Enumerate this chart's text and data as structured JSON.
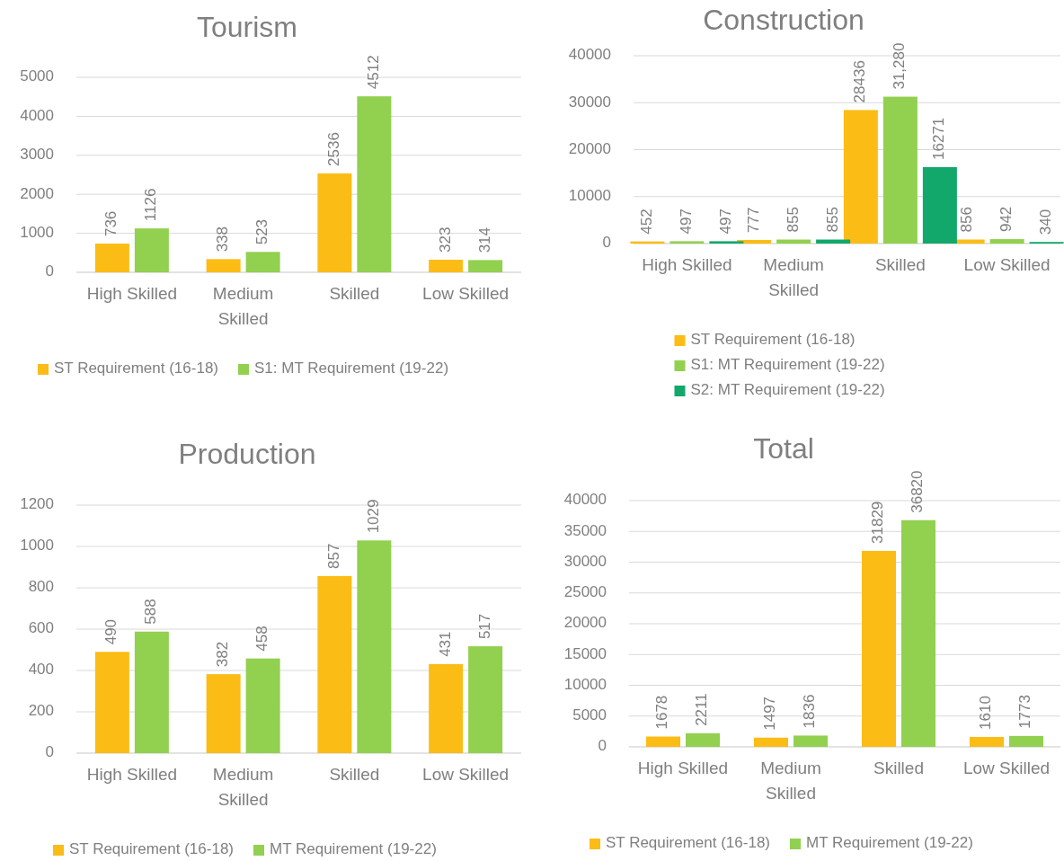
{
  "chart_data": [
    {
      "type": "bar",
      "title": "Tourism",
      "categories": [
        "High Skilled",
        "Medium Skilled",
        "Skilled",
        "Low Skilled"
      ],
      "series": [
        {
          "name": "ST Requirement (16-18)",
          "color": "#fbbc16",
          "values": [
            736,
            338,
            2536,
            323
          ]
        },
        {
          "name": "S1: MT Requirement (19-22)",
          "color": "#92d050",
          "values": [
            1126,
            523,
            4512,
            314
          ]
        }
      ],
      "ylim": [
        0,
        5000
      ],
      "yticks": [
        0,
        1000,
        2000,
        3000,
        4000,
        5000
      ],
      "grid": "y",
      "legend": "bottom",
      "data_labels": true
    },
    {
      "type": "bar",
      "title": "Construction",
      "categories": [
        "High Skilled",
        "Medium Skilled",
        "Skilled",
        "Low Skilled"
      ],
      "series": [
        {
          "name": "ST Requirement (16-18)",
          "color": "#fbbc16",
          "values": [
            452,
            777,
            28436,
            856
          ],
          "value_labels": [
            "452",
            "777",
            "28436",
            "856"
          ]
        },
        {
          "name": "S1: MT Requirement (19-22)",
          "color": "#92d050",
          "values": [
            497,
            855,
            31280,
            942
          ],
          "value_labels": [
            "497",
            "855",
            "31,280",
            "942"
          ]
        },
        {
          "name": "S2: MT Requirement (19-22)",
          "color": "#12a86b",
          "values": [
            497,
            855,
            16271,
            340
          ],
          "value_labels": [
            "497",
            "855",
            "16271",
            "340"
          ]
        }
      ],
      "ylim": [
        0,
        40000
      ],
      "yticks": [
        0,
        10000,
        20000,
        30000,
        40000
      ],
      "grid": "y",
      "legend": "bottom"
    },
    {
      "type": "bar",
      "title": "Production",
      "categories": [
        "High Skilled",
        "Medium Skilled",
        "Skilled",
        "Low Skilled"
      ],
      "series": [
        {
          "name": "ST Requirement (16-18)",
          "color": "#fbbc16",
          "values": [
            490,
            382,
            857,
            431
          ]
        },
        {
          "name": "MT Requirement (19-22)",
          "color": "#92d050",
          "values": [
            588,
            458,
            1029,
            517
          ]
        }
      ],
      "ylim": [
        0,
        1200
      ],
      "yticks": [
        0,
        200,
        400,
        600,
        800,
        1000,
        1200
      ],
      "grid": "y",
      "legend": "bottom",
      "data_labels": true
    },
    {
      "type": "bar",
      "title": "Total",
      "categories": [
        "High Skilled",
        "Medium Skilled",
        "Skilled",
        "Low Skilled"
      ],
      "series": [
        {
          "name": "ST Requirement (16-18)",
          "color": "#fbbc16",
          "values": [
            1678,
            1497,
            31829,
            1610
          ]
        },
        {
          "name": "MT Requirement (19-22)",
          "color": "#92d050",
          "values": [
            2211,
            1836,
            36820,
            1773
          ]
        }
      ],
      "ylim": [
        0,
        40000
      ],
      "yticks": [
        0,
        5000,
        10000,
        15000,
        20000,
        25000,
        30000,
        35000,
        40000
      ],
      "grid": "y",
      "legend": "bottom",
      "data_labels": true
    }
  ]
}
